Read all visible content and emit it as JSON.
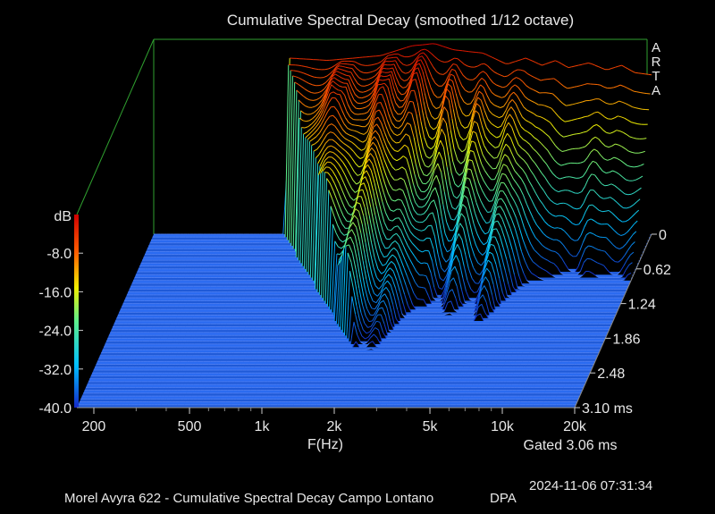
{
  "chart_data": {
    "type": "waterfall",
    "title": "Cumulative Spectral Decay (smoothed 1/12 octave)",
    "xlabel": "F(Hz)",
    "ylabel": "dB",
    "x_scale": "log",
    "xlim": [
      170,
      20000
    ],
    "x_ticks": [
      {
        "value": 200,
        "label": "200"
      },
      {
        "value": 500,
        "label": "500"
      },
      {
        "value": 1000,
        "label": "1k"
      },
      {
        "value": 2000,
        "label": "2k"
      },
      {
        "value": 5000,
        "label": "5k"
      },
      {
        "value": 10000,
        "label": "10k"
      },
      {
        "value": 20000,
        "label": "20k"
      }
    ],
    "zlim": [
      -40,
      0
    ],
    "z_ticks": [
      {
        "value": -8,
        "label": "-8.0"
      },
      {
        "value": -16,
        "label": "-16.0"
      },
      {
        "value": -24,
        "label": "-24.0"
      },
      {
        "value": -32,
        "label": "-32.0"
      },
      {
        "value": -40,
        "label": "-40.0"
      }
    ],
    "time_unit": "ms",
    "time_ticks": [
      {
        "value": 0,
        "label": "0"
      },
      {
        "value": 0.62,
        "label": "0.62"
      },
      {
        "value": 1.24,
        "label": "1.24"
      },
      {
        "value": 1.86,
        "label": "1.86"
      },
      {
        "value": 2.48,
        "label": "2.48"
      },
      {
        "value": 3.1,
        "label": "3.10 ms"
      }
    ],
    "time_range": [
      0,
      3.1
    ],
    "slices": 61,
    "gate_label": "Gated 3.06 ms",
    "brand_letters": [
      "A",
      "R",
      "T",
      "A"
    ],
    "initial_response": [
      [
        170,
        -40
      ],
      [
        600,
        -40
      ],
      [
        620,
        -3.5
      ],
      [
        900,
        -4.0
      ],
      [
        1500,
        -3.0
      ],
      [
        2000,
        -1.0
      ],
      [
        2500,
        -0.5
      ],
      [
        3000,
        -1.8
      ],
      [
        4000,
        -2.5
      ],
      [
        5000,
        -4.8
      ],
      [
        6000,
        -3.5
      ],
      [
        7000,
        -5.0
      ],
      [
        8000,
        -4.0
      ],
      [
        9000,
        -5.5
      ],
      [
        11000,
        -4.5
      ],
      [
        13000,
        -6.0
      ],
      [
        15000,
        -5.0
      ],
      [
        17000,
        -6.5
      ],
      [
        20000,
        -7.0
      ]
    ],
    "colorbar": [
      "#1a2ed8",
      "#00c8ff",
      "#7af070",
      "#f0f000",
      "#ff5000",
      "#d00000"
    ]
  },
  "footer": {
    "timestamp": "2024-11-06  07:31:34",
    "caption": "Morel Avyra 622 - Cumulative Spectral Decay Campo Lontano",
    "mic": "DPA"
  }
}
